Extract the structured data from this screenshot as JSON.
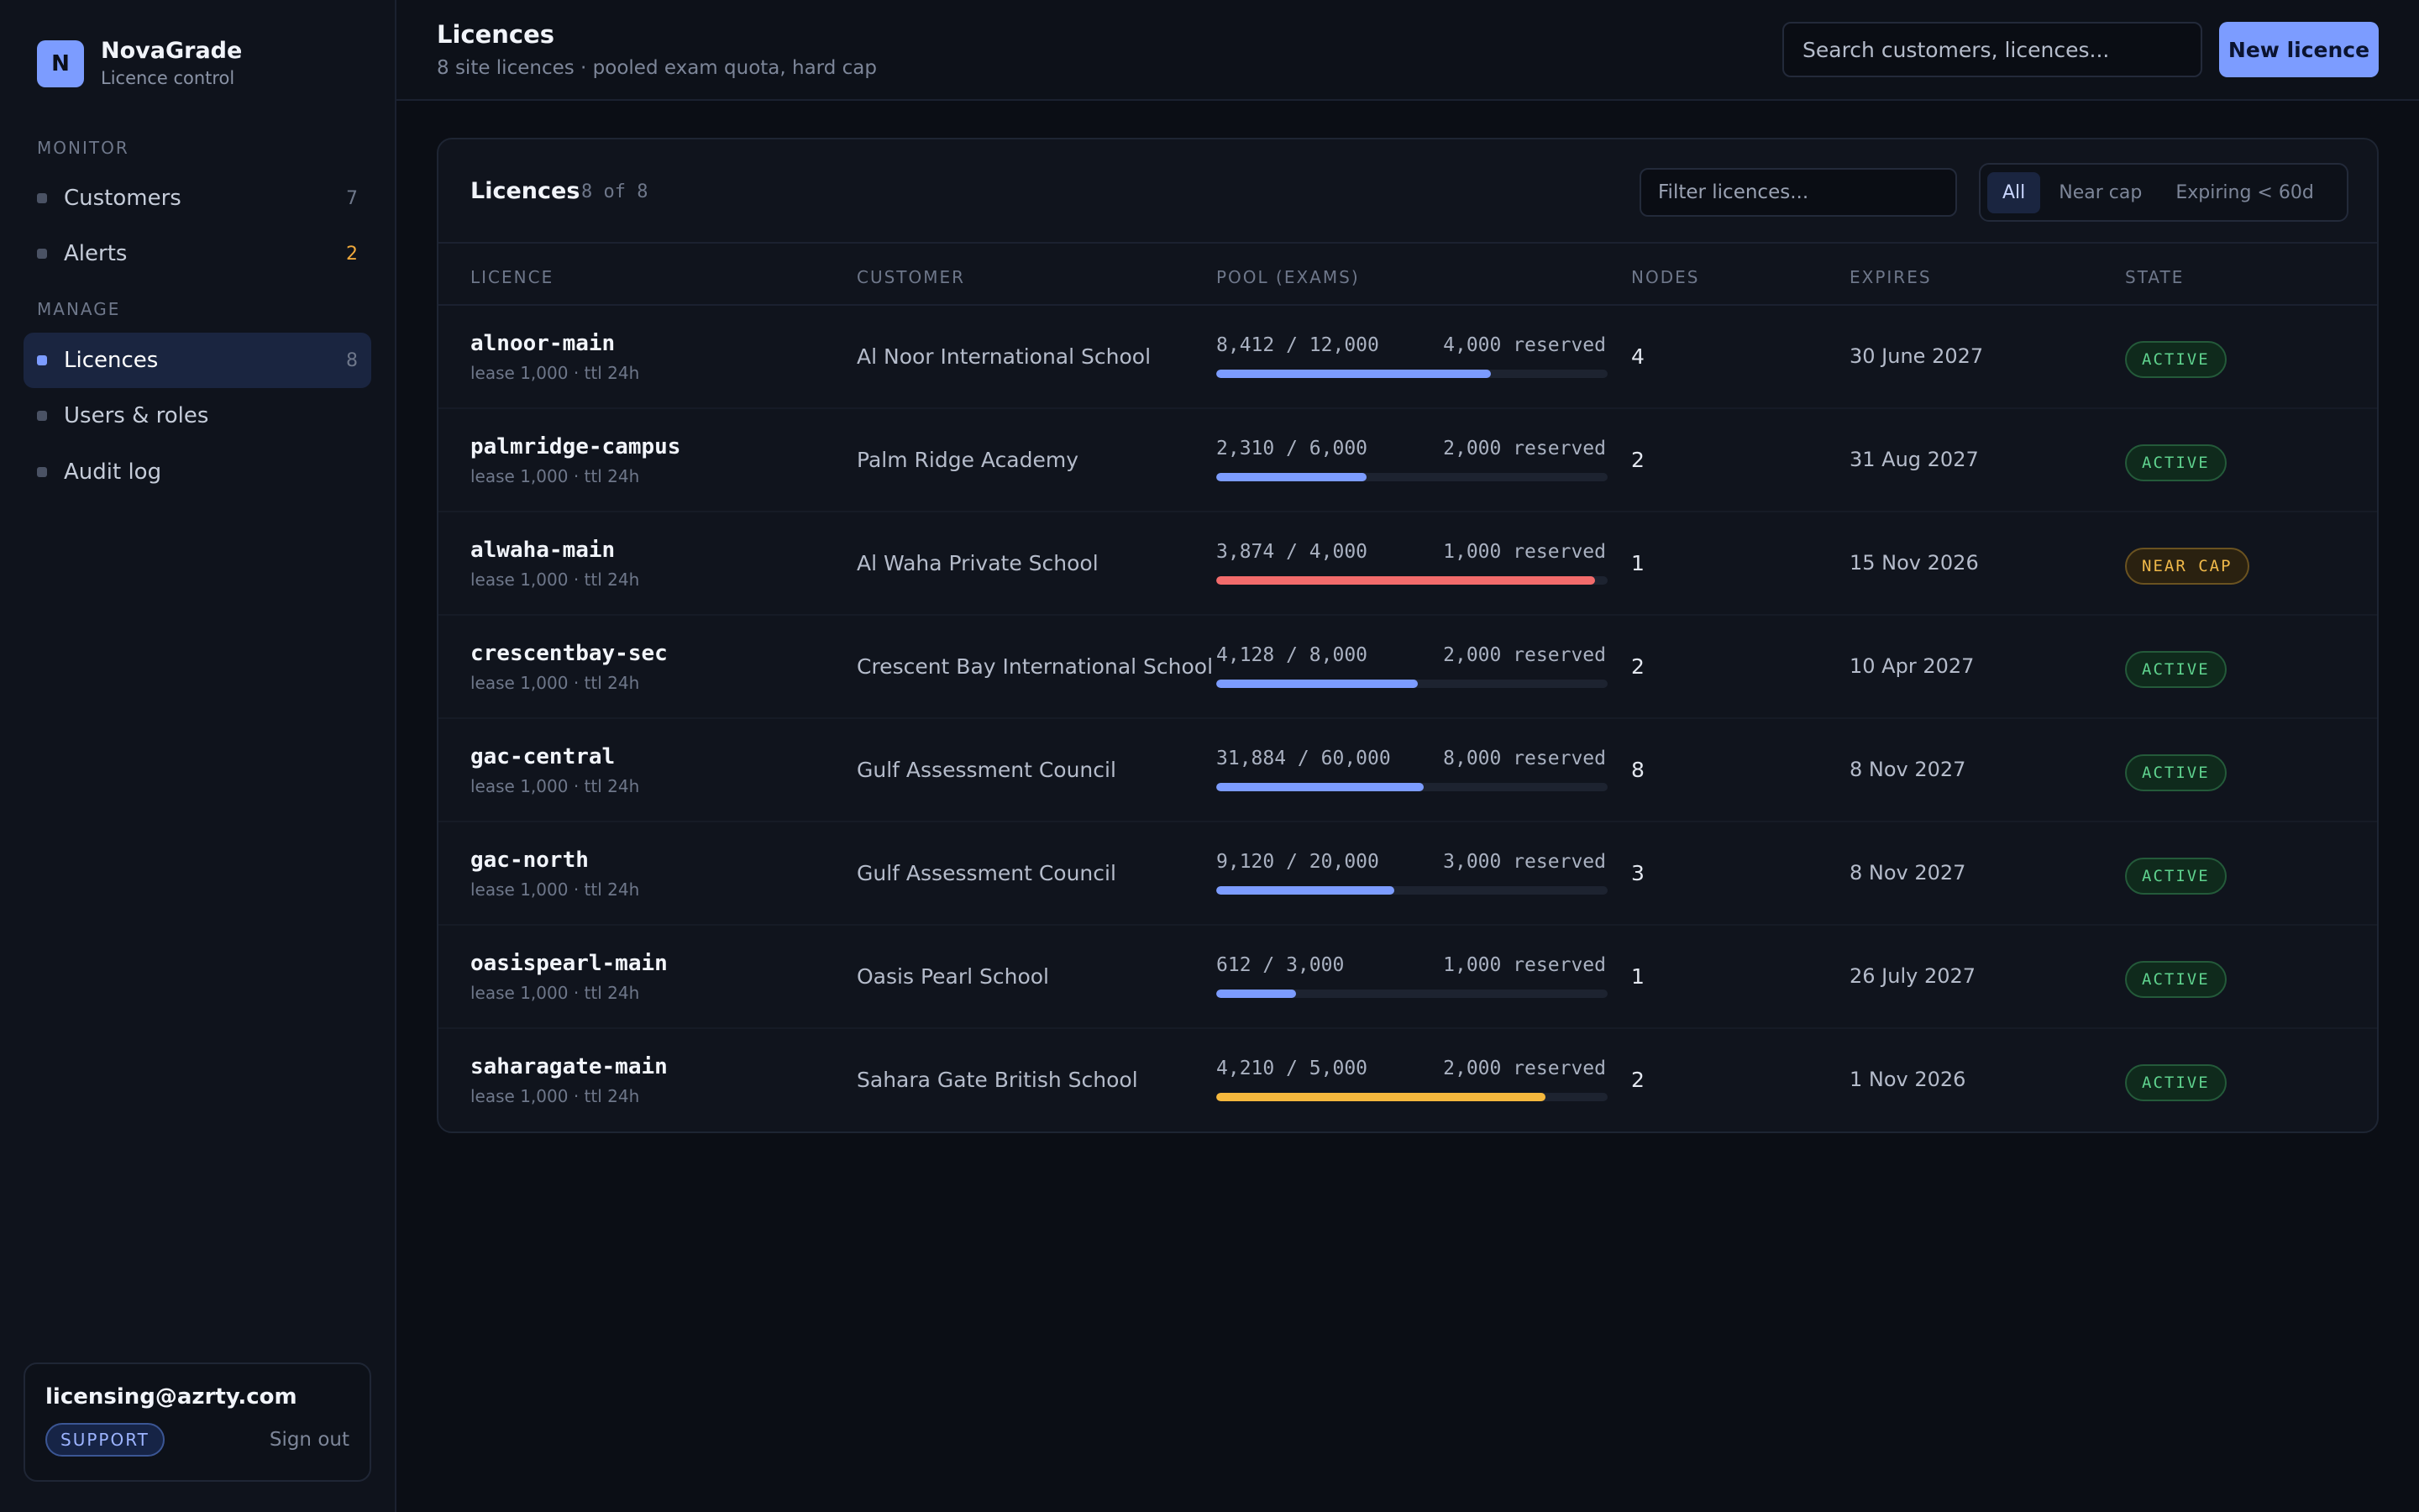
{
  "brand": {
    "logo_letter": "N",
    "name": "NovaGrade",
    "subtitle": "Licence control"
  },
  "sidebar": {
    "sections": [
      {
        "title": "MONITOR",
        "items": [
          {
            "label": "Customers",
            "count": "7"
          },
          {
            "label": "Alerts",
            "count": "2"
          }
        ]
      },
      {
        "title": "MANAGE",
        "items": [
          {
            "label": "Licences",
            "count": "8",
            "active": true
          },
          {
            "label": "Users & roles",
            "count": ""
          },
          {
            "label": "Audit log",
            "count": ""
          }
        ]
      }
    ]
  },
  "user": {
    "email": "licensing@azrty.com",
    "role": "SUPPORT",
    "signout": "Sign out"
  },
  "header": {
    "title": "Licences",
    "subtitle": "8 site licences · pooled exam quota, hard cap",
    "search_placeholder": "Search customers, licences...",
    "new_button": "New licence"
  },
  "panel": {
    "title": "Licences",
    "count": "8 of 8",
    "filter_placeholder": "Filter licences...",
    "segments": [
      "All",
      "Near cap",
      "Expiring < 60d"
    ],
    "active_segment": 0,
    "columns": [
      "LICENCE",
      "CUSTOMER",
      "POOL (EXAMS)",
      "NODES",
      "EXPIRES",
      "STATE"
    ]
  },
  "colors": {
    "accent": "#7c9cff",
    "danger": "#f26b6b",
    "warning": "#f5b83d",
    "ok": "#5fd28e"
  },
  "licences": [
    {
      "name": "alnoor-main",
      "sub": "lease 1,000 · ttl 24h",
      "customer": "Al Noor International School",
      "used": "8,412 / 12,000",
      "reserved": "4,000 reserved",
      "fraction": 0.701,
      "bar_color": "#7c9cff",
      "nodes": "4",
      "expires": "30 June 2027",
      "state": "ACTIVE",
      "state_kind": "active"
    },
    {
      "name": "palmridge-campus",
      "sub": "lease 1,000 · ttl 24h",
      "customer": "Palm Ridge Academy",
      "used": "2,310 / 6,000",
      "reserved": "2,000 reserved",
      "fraction": 0.385,
      "bar_color": "#7c9cff",
      "nodes": "2",
      "expires": "31 Aug 2027",
      "state": "ACTIVE",
      "state_kind": "active"
    },
    {
      "name": "alwaha-main",
      "sub": "lease 1,000 · ttl 24h",
      "customer": "Al Waha Private School",
      "used": "3,874 / 4,000",
      "reserved": "1,000 reserved",
      "fraction": 0.9685,
      "bar_color": "#f26b6b",
      "nodes": "1",
      "expires": "15 Nov 2026",
      "state": "NEAR CAP",
      "state_kind": "near"
    },
    {
      "name": "crescentbay-sec",
      "sub": "lease 1,000 · ttl 24h",
      "customer": "Crescent Bay International School",
      "used": "4,128 / 8,000",
      "reserved": "2,000 reserved",
      "fraction": 0.516,
      "bar_color": "#7c9cff",
      "nodes": "2",
      "expires": "10 Apr 2027",
      "state": "ACTIVE",
      "state_kind": "active"
    },
    {
      "name": "gac-central",
      "sub": "lease 1,000 · ttl 24h",
      "customer": "Gulf Assessment Council",
      "used": "31,884 / 60,000",
      "reserved": "8,000 reserved",
      "fraction": 0.531,
      "bar_color": "#7c9cff",
      "nodes": "8",
      "expires": "8 Nov 2027",
      "state": "ACTIVE",
      "state_kind": "active"
    },
    {
      "name": "gac-north",
      "sub": "lease 1,000 · ttl 24h",
      "customer": "Gulf Assessment Council",
      "used": "9,120 / 20,000",
      "reserved": "3,000 reserved",
      "fraction": 0.456,
      "bar_color": "#7c9cff",
      "nodes": "3",
      "expires": "8 Nov 2027",
      "state": "ACTIVE",
      "state_kind": "active"
    },
    {
      "name": "oasispearl-main",
      "sub": "lease 1,000 · ttl 24h",
      "customer": "Oasis Pearl School",
      "used": "612 / 3,000",
      "reserved": "1,000 reserved",
      "fraction": 0.204,
      "bar_color": "#7c9cff",
      "nodes": "1",
      "expires": "26 July 2027",
      "state": "ACTIVE",
      "state_kind": "active"
    },
    {
      "name": "saharagate-main",
      "sub": "lease 1,000 · ttl 24h",
      "customer": "Sahara Gate British School",
      "used": "4,210 / 5,000",
      "reserved": "2,000 reserved",
      "fraction": 0.842,
      "bar_color": "#f5b83d",
      "nodes": "2",
      "expires": "1 Nov 2026",
      "state": "ACTIVE",
      "state_kind": "active"
    }
  ]
}
